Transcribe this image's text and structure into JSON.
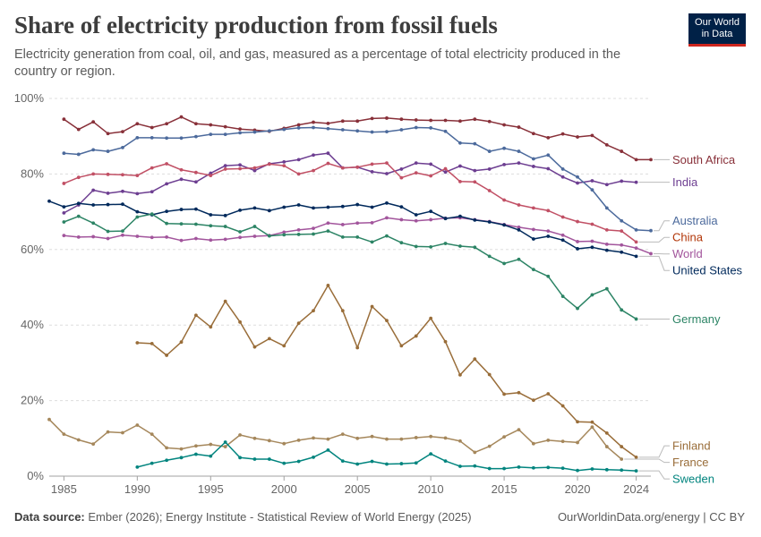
{
  "header": {
    "title": "Share of electricity production from fossil fuels",
    "subtitle": "Electricity generation from coal, oil, and gas, measured as a percentage of total electricity produced in the country or region.",
    "logo_line1": "Our World",
    "logo_line2": "in Data"
  },
  "footer": {
    "source_label": "Data source:",
    "source_text": "Ember (2026); Energy Institute - Statistical Review of World Energy (2025)",
    "right_text": "OurWorldinData.org/energy | CC BY"
  },
  "chart_data": {
    "type": "line",
    "xlim": [
      1984,
      2025
    ],
    "ylim": [
      0,
      100
    ],
    "x_ticks": [
      1985,
      1990,
      1995,
      2000,
      2005,
      2010,
      2015,
      2020,
      2024
    ],
    "y_ticks": [
      0,
      20,
      40,
      60,
      80,
      100
    ],
    "y_tick_labels": [
      "0%",
      "20%",
      "40%",
      "60%",
      "80%",
      "100%"
    ],
    "grid": true,
    "legend": "right, labels at line ends",
    "series": [
      {
        "name": "South Africa",
        "color": "#883039",
        "start": 1985,
        "values": [
          94.5,
          91.8,
          93.8,
          90.7,
          91.2,
          93.3,
          92.3,
          93.3,
          95.1,
          93.3,
          93.0,
          92.5,
          91.9,
          91.6,
          91.3,
          92.1,
          93.0,
          93.7,
          93.4,
          94.0,
          94.0,
          94.7,
          94.8,
          94.5,
          94.3,
          94.2,
          94.2,
          94.0,
          94.5,
          93.9,
          93.0,
          92.4,
          90.7,
          89.6,
          90.6,
          89.8,
          90.2,
          87.7,
          86.0,
          83.8,
          83.8
        ]
      },
      {
        "name": "India",
        "color": "#6d3e91",
        "start": 1985,
        "values": [
          69.7,
          71.8,
          75.7,
          74.9,
          75.4,
          74.8,
          75.3,
          77.4,
          78.6,
          77.9,
          80.2,
          82.2,
          82.4,
          80.9,
          82.7,
          83.2,
          83.8,
          85.0,
          85.5,
          81.6,
          81.8,
          80.6,
          80.1,
          81.3,
          82.9,
          82.6,
          80.5,
          82.1,
          80.9,
          81.3,
          82.5,
          82.9,
          82.0,
          81.4,
          79.2,
          77.6,
          78.2,
          77.2,
          78.1,
          77.8
        ]
      },
      {
        "name": "Australia",
        "color": "#4c6a9c",
        "start": 1985,
        "values": [
          85.5,
          85.2,
          86.4,
          86.0,
          87.0,
          89.6,
          89.6,
          89.5,
          89.5,
          89.9,
          90.5,
          90.5,
          90.9,
          91.1,
          91.4,
          91.8,
          92.2,
          92.3,
          92.0,
          91.7,
          91.4,
          91.1,
          91.2,
          91.7,
          92.3,
          92.2,
          91.3,
          88.2,
          88.0,
          86.0,
          86.8,
          86.0,
          84.0,
          85.0,
          81.3,
          79.2,
          75.8,
          71.0,
          67.6,
          65.2,
          65.0
        ]
      },
      {
        "name": "China",
        "color": "#c15065",
        "labelColor": "#b13507",
        "start": 1985,
        "values": [
          77.5,
          79.1,
          80.0,
          79.9,
          79.8,
          79.6,
          81.6,
          82.7,
          81.1,
          80.4,
          79.6,
          81.3,
          81.4,
          81.6,
          82.6,
          82.2,
          80.0,
          80.9,
          82.8,
          81.6,
          81.8,
          82.6,
          82.9,
          79.0,
          80.3,
          79.5,
          81.4,
          78.0,
          77.9,
          75.6,
          73.1,
          71.8,
          71.0,
          70.3,
          68.6,
          67.4,
          66.7,
          65.2,
          64.9,
          62.0
        ]
      },
      {
        "name": "World",
        "color": "#a2559c",
        "start": 1985,
        "values": [
          63.7,
          63.3,
          63.4,
          62.9,
          63.8,
          63.5,
          63.2,
          63.3,
          62.4,
          62.9,
          62.5,
          62.7,
          63.2,
          63.5,
          63.7,
          64.6,
          65.2,
          65.6,
          67.0,
          66.6,
          67.0,
          67.1,
          68.4,
          67.9,
          67.6,
          67.9,
          68.3,
          68.4,
          67.9,
          67.4,
          66.6,
          65.9,
          65.3,
          64.9,
          63.8,
          62.1,
          62.2,
          61.4,
          61.2,
          60.4,
          58.9
        ]
      },
      {
        "name": "United States",
        "color": "#00295b",
        "start": 1984,
        "values": [
          72.8,
          71.3,
          72.2,
          71.8,
          71.9,
          72.0,
          70.0,
          69.2,
          70.1,
          70.6,
          70.7,
          69.2,
          69.0,
          70.4,
          71.0,
          70.3,
          71.2,
          71.8,
          71.0,
          71.2,
          71.4,
          71.9,
          71.2,
          72.3,
          71.3,
          69.2,
          70.1,
          68.2,
          68.8,
          67.8,
          67.3,
          66.5,
          65.2,
          62.8,
          63.5,
          62.5,
          60.2,
          60.6,
          59.8,
          59.3,
          58.2
        ]
      },
      {
        "name": "Germany",
        "color": "#2c8465",
        "start": 1985,
        "values": [
          67.3,
          68.8,
          67.0,
          64.8,
          64.9,
          68.6,
          69.4,
          66.9,
          66.8,
          66.7,
          66.3,
          66.1,
          64.7,
          66.1,
          63.6,
          63.9,
          64.0,
          64.1,
          64.9,
          63.3,
          63.3,
          62.0,
          63.6,
          61.8,
          60.8,
          60.7,
          61.6,
          60.9,
          60.6,
          58.2,
          56.3,
          57.4,
          54.7,
          52.9,
          47.6,
          44.4,
          48.0,
          49.6,
          44.0,
          41.6
        ]
      },
      {
        "name": "Finland",
        "color": "#996d39",
        "labelColor": "#996d39",
        "start": 1990,
        "values": [
          35.3,
          35.1,
          32.0,
          35.5,
          42.6,
          39.5,
          46.3,
          40.8,
          34.2,
          36.4,
          34.5,
          40.5,
          43.8,
          50.5,
          43.8,
          34.0,
          44.9,
          41.2,
          34.5,
          37.1,
          41.8,
          35.6,
          26.8,
          31.0,
          26.9,
          21.7,
          22.1,
          20.1,
          21.8,
          18.6,
          14.4,
          14.3,
          11.4,
          7.8,
          5.0
        ]
      },
      {
        "name": "France",
        "color": "#a5875b",
        "labelColor": "#996d39",
        "start": 1984,
        "values": [
          15.0,
          11.1,
          9.6,
          8.5,
          11.7,
          11.5,
          13.5,
          11.1,
          7.5,
          7.2,
          8.0,
          8.4,
          7.8,
          10.9,
          10.0,
          9.4,
          8.6,
          9.5,
          10.1,
          9.8,
          11.1,
          10.0,
          10.5,
          9.8,
          9.8,
          10.2,
          10.5,
          10.1,
          9.3,
          6.3,
          7.9,
          10.4,
          12.3,
          8.6,
          9.5,
          9.2,
          8.9,
          13.0,
          7.8,
          4.5
        ]
      },
      {
        "name": "Sweden",
        "color": "#00847e",
        "start": 1990,
        "values": [
          2.4,
          3.4,
          4.2,
          4.9,
          5.8,
          5.3,
          9.0,
          4.9,
          4.5,
          4.5,
          3.4,
          3.9,
          5.0,
          6.9,
          4.0,
          3.2,
          3.9,
          3.2,
          3.3,
          3.5,
          5.9,
          4.0,
          2.6,
          2.7,
          2.0,
          2.0,
          2.4,
          2.2,
          2.3,
          2.1,
          1.5,
          1.9,
          1.7,
          1.6,
          1.4
        ]
      }
    ],
    "end_labels": [
      "South Africa",
      "India",
      "Australia",
      "China",
      "World",
      "United States",
      "Germany",
      "France",
      "Finland",
      "Sweden"
    ]
  }
}
